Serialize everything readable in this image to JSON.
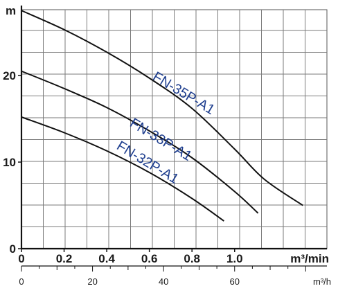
{
  "chart_data": {
    "type": "line",
    "x_unit_top": "m³/min",
    "x_unit_bottom": "m³/h",
    "y_unit": "m",
    "xlim": [
      0,
      1.433
    ],
    "ylim": [
      0,
      27.6
    ],
    "x_ticks": [
      "0",
      "0.2",
      "0.4",
      "0.6",
      "0.8",
      "1.0"
    ],
    "x_tick_values": [
      0,
      0.2,
      0.4,
      0.6,
      0.8,
      1.0
    ],
    "x2_ticks": [
      "0",
      "20",
      "40",
      "60"
    ],
    "x2_tick_values": [
      0,
      20,
      40,
      60
    ],
    "y_ticks": [
      "0",
      "10",
      "20"
    ],
    "y_tick_values": [
      0,
      10,
      20
    ],
    "grid": true,
    "series": [
      {
        "name": "FN-35P-A1",
        "color": "#111111",
        "x": [
          0,
          0.2,
          0.4,
          0.6,
          0.8,
          1.0,
          1.14,
          1.32
        ],
        "y": [
          27.5,
          25.3,
          22.7,
          19.7,
          16.2,
          11.5,
          8.0,
          5.0
        ]
      },
      {
        "name": "FN-33P-A1",
        "color": "#111111",
        "x": [
          0,
          0.2,
          0.4,
          0.6,
          0.8,
          1.0,
          1.11
        ],
        "y": [
          20.5,
          18.5,
          16.3,
          13.6,
          10.5,
          6.6,
          4.1
        ]
      },
      {
        "name": "FN-32P-A1",
        "color": "#111111",
        "x": [
          0,
          0.2,
          0.4,
          0.6,
          0.8,
          0.95
        ],
        "y": [
          15.2,
          13.4,
          11.3,
          8.8,
          5.8,
          3.2
        ]
      }
    ]
  }
}
